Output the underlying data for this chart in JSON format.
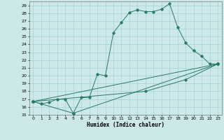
{
  "xlabel": "Humidex (Indice chaleur)",
  "bg_color": "#cce8e8",
  "line_color": "#2a7a6a",
  "grid_color": "#99cccc",
  "xlim": [
    -0.5,
    23.5
  ],
  "ylim": [
    15,
    29.5
  ],
  "xticks": [
    0,
    1,
    2,
    3,
    4,
    5,
    6,
    7,
    8,
    9,
    10,
    11,
    12,
    13,
    14,
    15,
    16,
    17,
    18,
    19,
    20,
    21,
    22,
    23
  ],
  "yticks": [
    15,
    16,
    17,
    18,
    19,
    20,
    21,
    22,
    23,
    24,
    25,
    26,
    27,
    28,
    29
  ],
  "lines": [
    {
      "x": [
        0,
        1,
        2,
        3,
        4,
        5,
        6,
        7,
        8,
        9,
        10,
        11,
        12,
        13,
        14,
        15,
        16,
        17,
        18,
        19,
        20,
        21,
        22,
        23
      ],
      "y": [
        16.7,
        16.4,
        16.6,
        17.0,
        17.0,
        15.2,
        17.2,
        17.2,
        20.2,
        20.0,
        25.5,
        26.8,
        28.1,
        28.4,
        28.2,
        28.2,
        28.5,
        29.2,
        26.2,
        24.2,
        23.2,
        22.5,
        21.5,
        21.5
      ]
    },
    {
      "x": [
        0,
        5,
        23
      ],
      "y": [
        16.7,
        15.2,
        21.5
      ]
    },
    {
      "x": [
        0,
        23
      ],
      "y": [
        16.7,
        21.5
      ]
    },
    {
      "x": [
        0,
        14,
        19,
        23
      ],
      "y": [
        16.7,
        18.0,
        19.5,
        21.5
      ]
    }
  ]
}
